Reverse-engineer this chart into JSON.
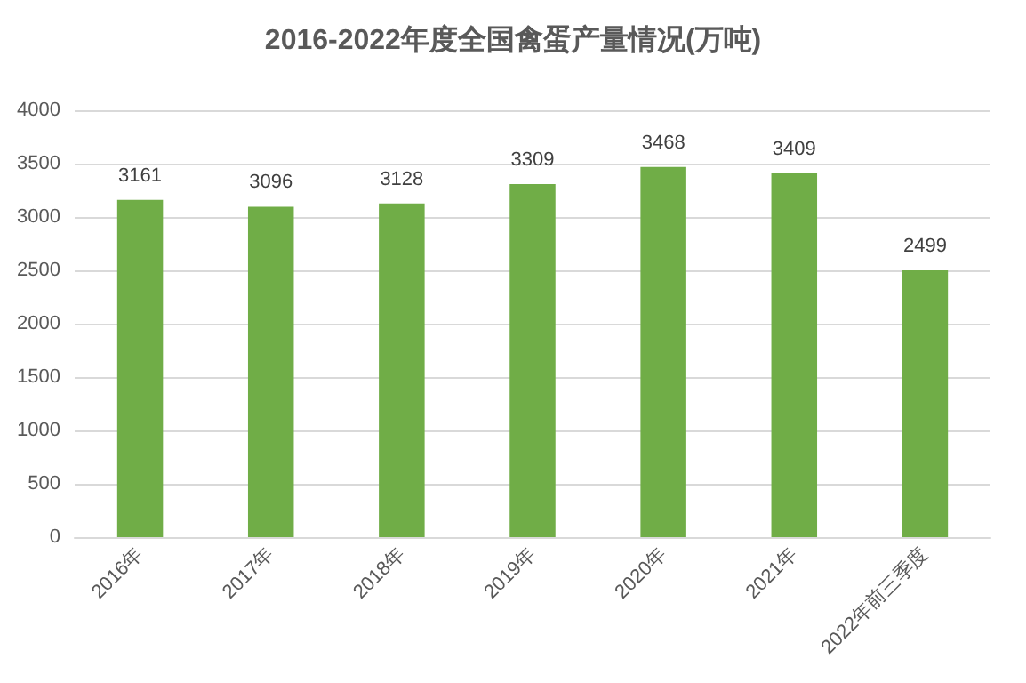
{
  "chart_data": {
    "type": "bar",
    "title": "2016-2022年度全国禽蛋产量情况(万吨)",
    "categories": [
      "2016年",
      "2017年",
      "2018年",
      "2019年",
      "2020年",
      "2021年",
      "2022年前三季度"
    ],
    "values": [
      3161,
      3096,
      3128,
      3309,
      3468,
      3409,
      2499
    ],
    "color": "#70ad47",
    "ylim": [
      0,
      4000
    ],
    "yticks": [
      0,
      500,
      1000,
      1500,
      2000,
      2500,
      3000,
      3500,
      4000
    ],
    "grid": "y",
    "data_labels": true
  }
}
